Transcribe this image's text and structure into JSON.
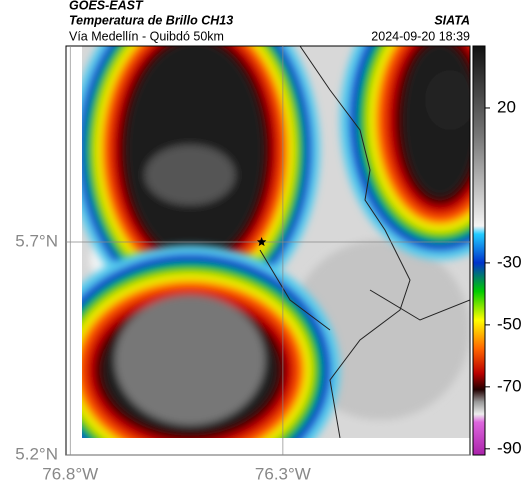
{
  "header": {
    "title": "GOES-EAST",
    "subtitle": "Temperatura de Brillo CH13",
    "route": "Vía Medellín - Quibdó 50km",
    "source": "SIATA",
    "datetime": "2024-09-20 18:39"
  },
  "map": {
    "xlim": [
      -76.81,
      -75.86
    ],
    "ylim": [
      5.2,
      6.16
    ],
    "xticks": [
      {
        "value": -76.8,
        "label": "76.8°W"
      },
      {
        "value": -76.3,
        "label": "76.3°W"
      }
    ],
    "yticks": [
      {
        "value": 5.2,
        "label": "5.2°N"
      },
      {
        "value": 5.7,
        "label": "5.7°N"
      }
    ],
    "grid": true,
    "marker": {
      "lon": -76.35,
      "lat": 5.7
    }
  },
  "colorbar": {
    "lim": [
      -92,
      40
    ],
    "ticks": [
      20,
      -30,
      -50,
      -70,
      -90
    ]
  }
}
